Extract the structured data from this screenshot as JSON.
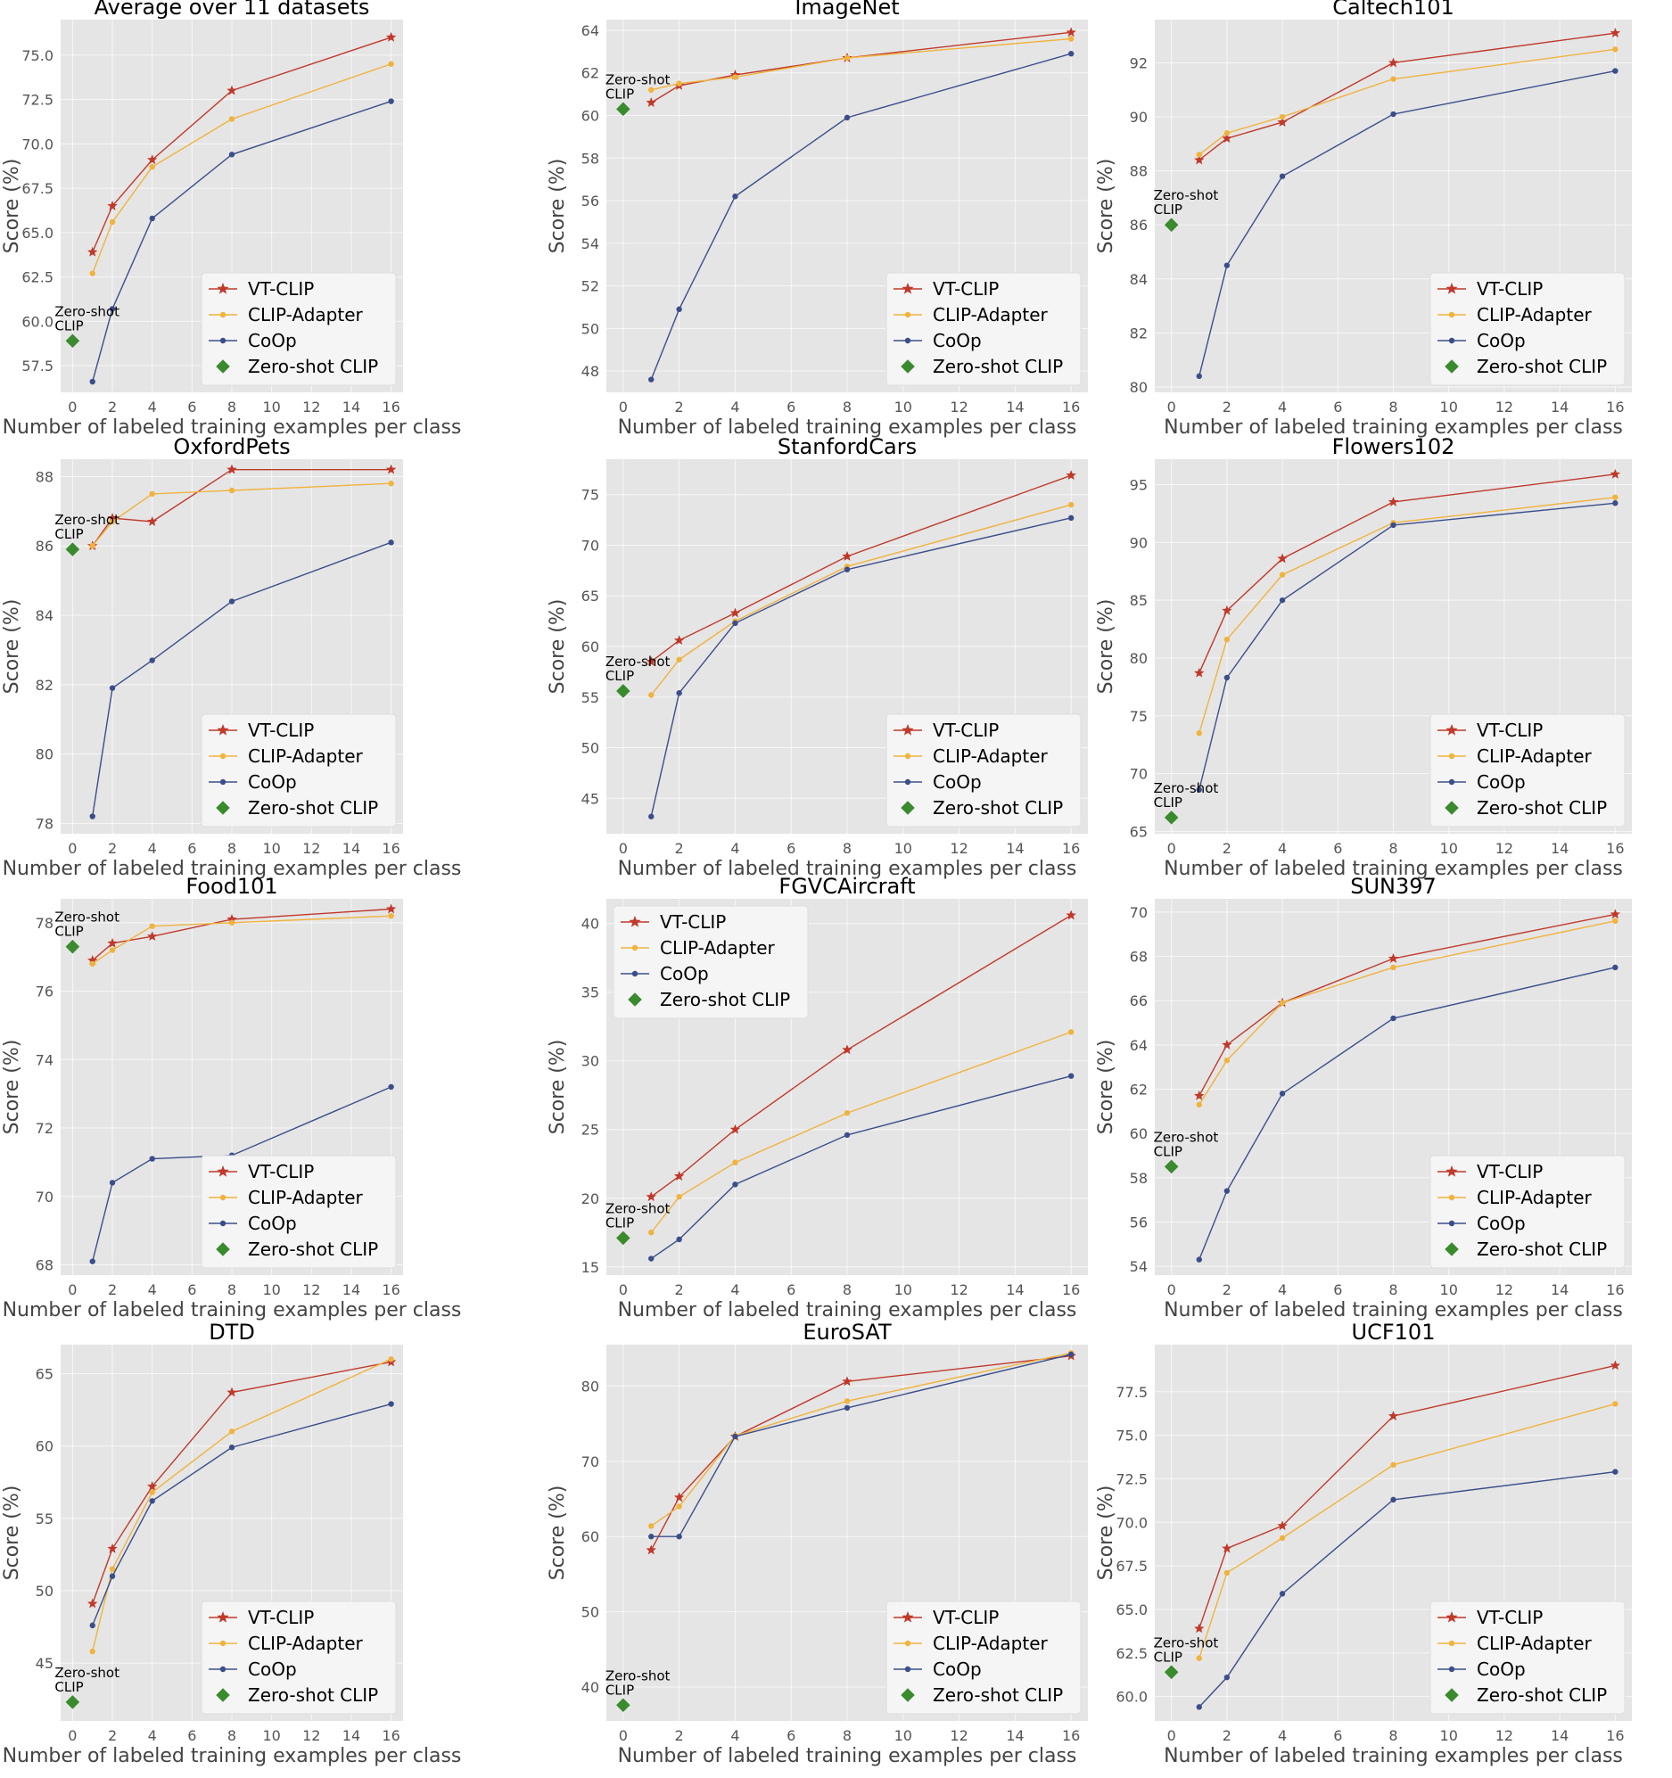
{
  "colors": {
    "vtclip": "#c0392b",
    "clipadapter": "#f0b33e",
    "coop": "#3b4e8a",
    "zeroshot": "#3a8a2e",
    "plot_bg": "#e5e5e5",
    "grid": "#ffffff"
  },
  "chart_data": [
    {
      "type": "line",
      "title": "Average over 11 datasets",
      "xlabel": "Number of labeled training examples per class",
      "ylabel": "Score (%)",
      "xlim": [
        -0.6,
        16.6
      ],
      "ylim": [
        56.0,
        77.0
      ],
      "xticks": [
        0,
        2,
        4,
        6,
        8,
        10,
        12,
        14,
        16
      ],
      "yticks": [
        57.5,
        60.0,
        62.5,
        65.0,
        67.5,
        70.0,
        72.5,
        75.0
      ],
      "ytick_decimals": 1,
      "x": [
        1,
        2,
        4,
        8,
        16
      ],
      "series": [
        {
          "name": "VT-CLIP",
          "marker": "star",
          "values": [
            63.9,
            66.5,
            69.1,
            73.0,
            76.0
          ]
        },
        {
          "name": "CLIP-Adapter",
          "marker": "dot",
          "values": [
            62.7,
            65.6,
            68.7,
            71.4,
            74.5
          ]
        },
        {
          "name": "CoOp",
          "marker": "dot",
          "values": [
            56.6,
            60.7,
            65.8,
            69.4,
            72.4
          ]
        }
      ],
      "zero_shot": {
        "name": "Zero-shot CLIP",
        "value": 58.9,
        "label_lines": [
          "Zero-shot",
          "CLIP"
        ]
      },
      "legend": "bottom-right",
      "grid": true
    },
    {
      "type": "line",
      "title": "ImageNet",
      "xlabel": "Number of labeled training examples per class",
      "ylabel": "Score (%)",
      "xlim": [
        -0.6,
        16.6
      ],
      "ylim": [
        47.0,
        64.5
      ],
      "xticks": [
        0,
        2,
        4,
        6,
        8,
        10,
        12,
        14,
        16
      ],
      "yticks": [
        48,
        50,
        52,
        54,
        56,
        58,
        60,
        62,
        64
      ],
      "ytick_decimals": 0,
      "x": [
        1,
        2,
        4,
        8,
        16
      ],
      "series": [
        {
          "name": "VT-CLIP",
          "marker": "star",
          "values": [
            60.6,
            61.4,
            61.9,
            62.7,
            63.9
          ]
        },
        {
          "name": "CLIP-Adapter",
          "marker": "dot",
          "values": [
            61.2,
            61.5,
            61.8,
            62.7,
            63.6
          ]
        },
        {
          "name": "CoOp",
          "marker": "dot",
          "values": [
            47.6,
            50.9,
            56.2,
            59.9,
            62.9
          ]
        }
      ],
      "zero_shot": {
        "name": "Zero-shot CLIP",
        "value": 60.3,
        "label_lines": [
          "Zero-shot",
          "CLIP"
        ]
      },
      "legend": "bottom-right",
      "grid": true
    },
    {
      "type": "line",
      "title": "Caltech101",
      "xlabel": "Number of labeled training examples per class",
      "ylabel": "Score (%)",
      "xlim": [
        -0.6,
        16.6
      ],
      "ylim": [
        79.8,
        93.6
      ],
      "xticks": [
        0,
        2,
        4,
        6,
        8,
        10,
        12,
        14,
        16
      ],
      "yticks": [
        80,
        82,
        84,
        86,
        88,
        90,
        92
      ],
      "ytick_decimals": 0,
      "x": [
        1,
        2,
        4,
        8,
        16
      ],
      "series": [
        {
          "name": "VT-CLIP",
          "marker": "star",
          "values": [
            88.4,
            89.2,
            89.8,
            92.0,
            93.1
          ]
        },
        {
          "name": "CLIP-Adapter",
          "marker": "dot",
          "values": [
            88.6,
            89.4,
            90.0,
            91.4,
            92.5
          ]
        },
        {
          "name": "CoOp",
          "marker": "dot",
          "values": [
            80.4,
            84.5,
            87.8,
            90.1,
            91.7
          ]
        }
      ],
      "zero_shot": {
        "name": "Zero-shot CLIP",
        "value": 86.0,
        "label_lines": [
          "Zero-shot",
          "CLIP"
        ]
      },
      "legend": "bottom-right",
      "grid": true
    },
    {
      "type": "line",
      "title": "OxfordPets",
      "xlabel": "Number of labeled training examples per class",
      "ylabel": "Score (%)",
      "xlim": [
        -0.6,
        16.6
      ],
      "ylim": [
        77.7,
        88.5
      ],
      "xticks": [
        0,
        2,
        4,
        6,
        8,
        10,
        12,
        14,
        16
      ],
      "yticks": [
        78,
        80,
        82,
        84,
        86,
        88
      ],
      "ytick_decimals": 0,
      "x": [
        1,
        2,
        4,
        8,
        16
      ],
      "series": [
        {
          "name": "VT-CLIP",
          "marker": "star",
          "values": [
            86.0,
            86.8,
            86.7,
            88.2,
            88.2
          ]
        },
        {
          "name": "CLIP-Adapter",
          "marker": "dot",
          "values": [
            86.0,
            86.7,
            87.5,
            87.6,
            87.8
          ]
        },
        {
          "name": "CoOp",
          "marker": "dot",
          "values": [
            78.2,
            81.9,
            82.7,
            84.4,
            86.1
          ]
        }
      ],
      "zero_shot": {
        "name": "Zero-shot CLIP",
        "value": 85.9,
        "label_lines": [
          "Zero-shot",
          "CLIP"
        ]
      },
      "legend": "bottom-right",
      "grid": true
    },
    {
      "type": "line",
      "title": "StanfordCars",
      "xlabel": "Number of labeled training examples per class",
      "ylabel": "Score (%)",
      "xlim": [
        -0.6,
        16.6
      ],
      "ylim": [
        41.5,
        78.5
      ],
      "xticks": [
        0,
        2,
        4,
        6,
        8,
        10,
        12,
        14,
        16
      ],
      "yticks": [
        45,
        50,
        55,
        60,
        65,
        70,
        75
      ],
      "ytick_decimals": 0,
      "x": [
        1,
        2,
        4,
        8,
        16
      ],
      "series": [
        {
          "name": "VT-CLIP",
          "marker": "star",
          "values": [
            58.5,
            60.6,
            63.3,
            68.9,
            76.9
          ]
        },
        {
          "name": "CLIP-Adapter",
          "marker": "dot",
          "values": [
            55.2,
            58.7,
            62.5,
            67.9,
            74.0
          ]
        },
        {
          "name": "CoOp",
          "marker": "dot",
          "values": [
            43.2,
            55.4,
            62.3,
            67.6,
            72.7
          ]
        }
      ],
      "zero_shot": {
        "name": "Zero-shot CLIP",
        "value": 55.6,
        "label_lines": [
          "Zero-shot",
          "CLIP"
        ]
      },
      "legend": "bottom-right",
      "grid": true
    },
    {
      "type": "line",
      "title": "Flowers102",
      "xlabel": "Number of labeled training examples per class",
      "ylabel": "Score (%)",
      "xlim": [
        -0.6,
        16.6
      ],
      "ylim": [
        64.8,
        97.2
      ],
      "xticks": [
        0,
        2,
        4,
        6,
        8,
        10,
        12,
        14,
        16
      ],
      "yticks": [
        65,
        70,
        75,
        80,
        85,
        90,
        95
      ],
      "ytick_decimals": 0,
      "x": [
        1,
        2,
        4,
        8,
        16
      ],
      "series": [
        {
          "name": "VT-CLIP",
          "marker": "star",
          "values": [
            78.7,
            84.1,
            88.6,
            93.5,
            95.9
          ]
        },
        {
          "name": "CLIP-Adapter",
          "marker": "dot",
          "values": [
            73.5,
            81.6,
            87.2,
            91.7,
            93.9
          ]
        },
        {
          "name": "CoOp",
          "marker": "dot",
          "values": [
            68.6,
            78.3,
            85.0,
            91.5,
            93.4
          ]
        }
      ],
      "zero_shot": {
        "name": "Zero-shot CLIP",
        "value": 66.2,
        "label_lines": [
          "Zero-shot",
          "CLIP"
        ]
      },
      "legend": "bottom-right",
      "grid": true
    },
    {
      "type": "line",
      "title": "Food101",
      "xlabel": "Number of labeled training examples per class",
      "ylabel": "Score (%)",
      "xlim": [
        -0.6,
        16.6
      ],
      "ylim": [
        67.7,
        78.7
      ],
      "xticks": [
        0,
        2,
        4,
        6,
        8,
        10,
        12,
        14,
        16
      ],
      "yticks": [
        68,
        70,
        72,
        74,
        76,
        78
      ],
      "ytick_decimals": 0,
      "x": [
        1,
        2,
        4,
        8,
        16
      ],
      "series": [
        {
          "name": "VT-CLIP",
          "marker": "star",
          "values": [
            76.9,
            77.4,
            77.6,
            78.1,
            78.4
          ]
        },
        {
          "name": "CLIP-Adapter",
          "marker": "dot",
          "values": [
            76.8,
            77.2,
            77.9,
            78.0,
            78.2
          ]
        },
        {
          "name": "CoOp",
          "marker": "dot",
          "values": [
            68.1,
            70.4,
            71.1,
            71.2,
            73.2
          ]
        }
      ],
      "zero_shot": {
        "name": "Zero-shot CLIP",
        "value": 77.3,
        "label_lines": [
          "Zero-shot",
          "CLIP"
        ]
      },
      "legend": "bottom-right",
      "grid": true
    },
    {
      "type": "line",
      "title": "FGVCAircraft",
      "xlabel": "Number of labeled training examples per class",
      "ylabel": "Score (%)",
      "xlim": [
        -0.6,
        16.6
      ],
      "ylim": [
        14.4,
        41.8
      ],
      "xticks": [
        0,
        2,
        4,
        6,
        8,
        10,
        12,
        14,
        16
      ],
      "yticks": [
        15,
        20,
        25,
        30,
        35,
        40
      ],
      "ytick_decimals": 0,
      "x": [
        1,
        2,
        4,
        8,
        16
      ],
      "series": [
        {
          "name": "VT-CLIP",
          "marker": "star",
          "values": [
            20.1,
            21.6,
            25.0,
            30.8,
            40.6
          ]
        },
        {
          "name": "CLIP-Adapter",
          "marker": "dot",
          "values": [
            17.5,
            20.1,
            22.6,
            26.2,
            32.1
          ]
        },
        {
          "name": "CoOp",
          "marker": "dot",
          "values": [
            15.6,
            17.0,
            21.0,
            24.6,
            28.9
          ]
        }
      ],
      "zero_shot": {
        "name": "Zero-shot CLIP",
        "value": 17.1,
        "label_lines": [
          "Zero-shot",
          "CLIP"
        ]
      },
      "legend": "top-left",
      "grid": true
    },
    {
      "type": "line",
      "title": "SUN397",
      "xlabel": "Number of labeled training examples per class",
      "ylabel": "Score (%)",
      "xlim": [
        -0.6,
        16.6
      ],
      "ylim": [
        53.6,
        70.6
      ],
      "xticks": [
        0,
        2,
        4,
        6,
        8,
        10,
        12,
        14,
        16
      ],
      "yticks": [
        54,
        56,
        58,
        60,
        62,
        64,
        66,
        68,
        70
      ],
      "ytick_decimals": 0,
      "x": [
        1,
        2,
        4,
        8,
        16
      ],
      "series": [
        {
          "name": "VT-CLIP",
          "marker": "star",
          "values": [
            61.7,
            64.0,
            65.9,
            67.9,
            69.9
          ]
        },
        {
          "name": "CLIP-Adapter",
          "marker": "dot",
          "values": [
            61.3,
            63.3,
            65.9,
            67.5,
            69.6
          ]
        },
        {
          "name": "CoOp",
          "marker": "dot",
          "values": [
            54.3,
            57.4,
            61.8,
            65.2,
            67.5
          ]
        }
      ],
      "zero_shot": {
        "name": "Zero-shot CLIP",
        "value": 58.5,
        "label_lines": [
          "Zero-shot",
          "CLIP"
        ]
      },
      "legend": "bottom-right",
      "grid": true
    },
    {
      "type": "line",
      "title": "DTD",
      "xlabel": "Number of labeled training examples per class",
      "ylabel": "Score (%)",
      "xlim": [
        -0.6,
        16.6
      ],
      "ylim": [
        41.0,
        67.0
      ],
      "xticks": [
        0,
        2,
        4,
        6,
        8,
        10,
        12,
        14,
        16
      ],
      "yticks": [
        45,
        50,
        55,
        60,
        65
      ],
      "ytick_decimals": 0,
      "x": [
        1,
        2,
        4,
        8,
        16
      ],
      "series": [
        {
          "name": "VT-CLIP",
          "marker": "star",
          "values": [
            49.1,
            52.9,
            57.2,
            63.7,
            65.8
          ]
        },
        {
          "name": "CLIP-Adapter",
          "marker": "dot",
          "values": [
            45.8,
            51.5,
            56.8,
            61.0,
            66.0
          ]
        },
        {
          "name": "CoOp",
          "marker": "dot",
          "values": [
            47.6,
            51.0,
            56.2,
            59.9,
            62.9
          ]
        }
      ],
      "zero_shot": {
        "name": "Zero-shot CLIP",
        "value": 42.3,
        "label_lines": [
          "Zero-shot",
          "CLIP"
        ]
      },
      "legend": "bottom-right",
      "grid": true
    },
    {
      "type": "line",
      "title": "EuroSAT",
      "xlabel": "Number of labeled training examples per class",
      "ylabel": "Score (%)",
      "xlim": [
        -0.6,
        16.6
      ],
      "ylim": [
        35.5,
        85.5
      ],
      "xticks": [
        0,
        2,
        4,
        6,
        8,
        10,
        12,
        14,
        16
      ],
      "yticks": [
        40,
        50,
        60,
        70,
        80
      ],
      "ytick_decimals": 0,
      "x": [
        1,
        2,
        4,
        8,
        16
      ],
      "series": [
        {
          "name": "VT-CLIP",
          "marker": "star",
          "values": [
            58.2,
            65.2,
            73.3,
            80.6,
            84.0
          ]
        },
        {
          "name": "CLIP-Adapter",
          "marker": "dot",
          "values": [
            61.4,
            64.0,
            73.4,
            78.0,
            84.4
          ]
        },
        {
          "name": "CoOp",
          "marker": "dot",
          "values": [
            60.0,
            60.0,
            73.3,
            77.1,
            84.2
          ]
        }
      ],
      "zero_shot": {
        "name": "Zero-shot CLIP",
        "value": 37.6,
        "label_lines": [
          "Zero-shot",
          "CLIP"
        ]
      },
      "legend": "bottom-right",
      "grid": true
    },
    {
      "type": "line",
      "title": "UCF101",
      "xlabel": "Number of labeled training examples per class",
      "ylabel": "Score (%)",
      "xlim": [
        -0.6,
        16.6
      ],
      "ylim": [
        58.6,
        80.2
      ],
      "xticks": [
        0,
        2,
        4,
        6,
        8,
        10,
        12,
        14,
        16
      ],
      "yticks": [
        60.0,
        62.5,
        65.0,
        67.5,
        70.0,
        72.5,
        75.0,
        77.5
      ],
      "ytick_decimals": 1,
      "x": [
        1,
        2,
        4,
        8,
        16
      ],
      "series": [
        {
          "name": "VT-CLIP",
          "marker": "star",
          "values": [
            63.9,
            68.5,
            69.8,
            76.1,
            79.0
          ]
        },
        {
          "name": "CLIP-Adapter",
          "marker": "dot",
          "values": [
            62.2,
            67.1,
            69.1,
            73.3,
            76.8
          ]
        },
        {
          "name": "CoOp",
          "marker": "dot",
          "values": [
            59.4,
            61.1,
            65.9,
            71.3,
            72.9
          ]
        }
      ],
      "zero_shot": {
        "name": "Zero-shot CLIP",
        "value": 61.4,
        "label_lines": [
          "Zero-shot",
          "CLIP"
        ]
      },
      "legend": "bottom-right",
      "grid": true
    }
  ]
}
